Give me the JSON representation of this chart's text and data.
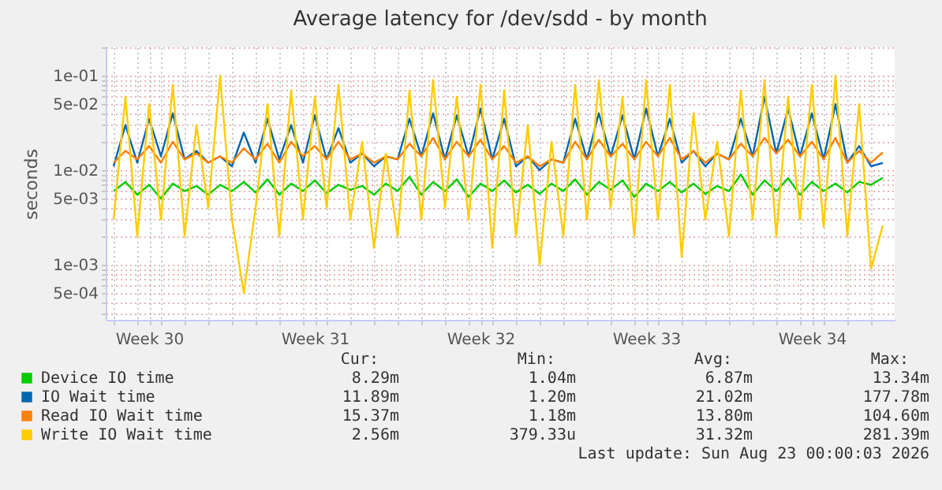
{
  "chart_data": {
    "type": "line",
    "title": "Average latency for /dev/sdd - by month",
    "ylabel": "seconds",
    "log": true,
    "grid": true,
    "legend": "bottom",
    "line_style": "solid",
    "xlim": [
      "2026-07-21T16:00",
      "2026-08-24T00:00"
    ],
    "ylim": [
      0.00026,
      0.2
    ],
    "yticks": [
      {
        "value": 0.0005,
        "label": "5e-04"
      },
      {
        "value": 0.001,
        "label": "1e-03"
      },
      {
        "value": 0.005,
        "label": "5e-03"
      },
      {
        "value": 0.01,
        "label": "1e-02"
      },
      {
        "value": 0.05,
        "label": "5e-02"
      },
      {
        "value": 0.1,
        "label": "1e-01"
      },
      {
        "value": 0.0003,
        "label": null
      },
      {
        "value": 0.0004,
        "label": null
      },
      {
        "value": 0.0006,
        "label": null
      },
      {
        "value": 0.0007,
        "label": null
      },
      {
        "value": 0.0008,
        "label": null
      },
      {
        "value": 0.0009,
        "label": null
      },
      {
        "value": 0.002,
        "label": null
      },
      {
        "value": 0.003,
        "label": null
      },
      {
        "value": 0.004,
        "label": null
      },
      {
        "value": 0.006,
        "label": null
      },
      {
        "value": 0.007,
        "label": null
      },
      {
        "value": 0.008,
        "label": null
      },
      {
        "value": 0.009,
        "label": null
      },
      {
        "value": 0.02,
        "label": null
      },
      {
        "value": 0.03,
        "label": null
      },
      {
        "value": 0.04,
        "label": null
      },
      {
        "value": 0.06,
        "label": null
      },
      {
        "value": 0.07,
        "label": null
      },
      {
        "value": 0.08,
        "label": null
      },
      {
        "value": 0.09,
        "label": null
      },
      {
        "value": 0.2,
        "label": null
      }
    ],
    "xticks": [
      {
        "value": "2026-07-23T12:00",
        "label": "Week 30"
      },
      {
        "value": "2026-07-30T12:00",
        "label": "Week 31"
      },
      {
        "value": "2026-08-06T12:00",
        "label": "Week 32"
      },
      {
        "value": "2026-08-13T12:00",
        "label": "Week 33"
      },
      {
        "value": "2026-08-20T12:00",
        "label": "Week 34"
      },
      {
        "value": "2026-07-22",
        "label": null
      },
      {
        "value": "2026-07-23",
        "label": null
      },
      {
        "value": "2026-07-24",
        "label": null
      },
      {
        "value": "2026-07-25",
        "label": null
      },
      {
        "value": "2026-07-26",
        "label": null
      },
      {
        "value": "2026-07-27",
        "label": null
      },
      {
        "value": "2026-07-28",
        "label": null
      },
      {
        "value": "2026-07-29",
        "label": null
      },
      {
        "value": "2026-07-30",
        "label": null
      },
      {
        "value": "2026-07-31",
        "label": null
      },
      {
        "value": "2026-08-01",
        "label": null
      },
      {
        "value": "2026-08-02",
        "label": null
      },
      {
        "value": "2026-08-03",
        "label": null
      },
      {
        "value": "2026-08-04",
        "label": null
      },
      {
        "value": "2026-08-05",
        "label": null
      },
      {
        "value": "2026-08-06",
        "label": null
      },
      {
        "value": "2026-08-07",
        "label": null
      },
      {
        "value": "2026-08-08",
        "label": null
      },
      {
        "value": "2026-08-09",
        "label": null
      },
      {
        "value": "2026-08-10",
        "label": null
      },
      {
        "value": "2026-08-11",
        "label": null
      },
      {
        "value": "2026-08-12",
        "label": null
      },
      {
        "value": "2026-08-13",
        "label": null
      },
      {
        "value": "2026-08-14",
        "label": null
      },
      {
        "value": "2026-08-15",
        "label": null
      },
      {
        "value": "2026-08-16",
        "label": null
      },
      {
        "value": "2026-08-17",
        "label": null
      },
      {
        "value": "2026-08-18",
        "label": null
      },
      {
        "value": "2026-08-19",
        "label": null
      },
      {
        "value": "2026-08-20",
        "label": null
      },
      {
        "value": "2026-08-21",
        "label": null
      },
      {
        "value": "2026-08-22",
        "label": null
      },
      {
        "value": "2026-08-23",
        "label": null
      }
    ],
    "x": [
      "2026-07-22T00:00",
      "2026-07-22T12:00",
      "2026-07-23T00:00",
      "2026-07-23T12:00",
      "2026-07-24T00:00",
      "2026-07-24T12:00",
      "2026-07-25T00:00",
      "2026-07-25T12:00",
      "2026-07-26T00:00",
      "2026-07-26T12:00",
      "2026-07-27T00:00",
      "2026-07-27T12:00",
      "2026-07-28T00:00",
      "2026-07-28T12:00",
      "2026-07-29T00:00",
      "2026-07-29T12:00",
      "2026-07-30T00:00",
      "2026-07-30T12:00",
      "2026-07-31T00:00",
      "2026-07-31T12:00",
      "2026-08-01T00:00",
      "2026-08-01T12:00",
      "2026-08-02T00:00",
      "2026-08-02T12:00",
      "2026-08-03T00:00",
      "2026-08-03T12:00",
      "2026-08-04T00:00",
      "2026-08-04T12:00",
      "2026-08-05T00:00",
      "2026-08-05T12:00",
      "2026-08-06T00:00",
      "2026-08-06T12:00",
      "2026-08-07T00:00",
      "2026-08-07T12:00",
      "2026-08-08T00:00",
      "2026-08-08T12:00",
      "2026-08-09T00:00",
      "2026-08-09T12:00",
      "2026-08-10T00:00",
      "2026-08-10T12:00",
      "2026-08-11T00:00",
      "2026-08-11T12:00",
      "2026-08-12T00:00",
      "2026-08-12T12:00",
      "2026-08-13T00:00",
      "2026-08-13T12:00",
      "2026-08-14T00:00",
      "2026-08-14T12:00",
      "2026-08-15T00:00",
      "2026-08-15T12:00",
      "2026-08-16T00:00",
      "2026-08-16T12:00",
      "2026-08-17T00:00",
      "2026-08-17T12:00",
      "2026-08-18T00:00",
      "2026-08-18T12:00",
      "2026-08-19T00:00",
      "2026-08-19T12:00",
      "2026-08-20T00:00",
      "2026-08-20T12:00",
      "2026-08-21T00:00",
      "2026-08-21T12:00",
      "2026-08-22T00:00",
      "2026-08-22T12:00",
      "2026-08-23T00:00",
      "2026-08-23T12:00"
    ],
    "series": [
      {
        "name": "Device IO time",
        "color": "#00cc00",
        "values": [
          0.006,
          0.0075,
          0.0055,
          0.007,
          0.005,
          0.0072,
          0.006,
          0.0068,
          0.0055,
          0.007,
          0.006,
          0.0075,
          0.0058,
          0.008,
          0.0055,
          0.0072,
          0.006,
          0.0078,
          0.0057,
          0.007,
          0.0062,
          0.0068,
          0.0055,
          0.0072,
          0.006,
          0.0085,
          0.0055,
          0.0075,
          0.006,
          0.008,
          0.0052,
          0.0072,
          0.006,
          0.0078,
          0.0058,
          0.007,
          0.0056,
          0.0072,
          0.006,
          0.008,
          0.0055,
          0.0075,
          0.0062,
          0.0078,
          0.0052,
          0.0072,
          0.006,
          0.0075,
          0.0058,
          0.0072,
          0.0056,
          0.0068,
          0.006,
          0.009,
          0.0055,
          0.0078,
          0.006,
          0.0082,
          0.0055,
          0.0075,
          0.006,
          0.0072,
          0.0058,
          0.0075,
          0.007,
          0.0083
        ]
      },
      {
        "name": "IO Wait time",
        "color": "#0066b3",
        "values": [
          0.011,
          0.03,
          0.012,
          0.035,
          0.014,
          0.04,
          0.013,
          0.016,
          0.012,
          0.014,
          0.011,
          0.025,
          0.012,
          0.035,
          0.013,
          0.03,
          0.012,
          0.038,
          0.013,
          0.028,
          0.012,
          0.015,
          0.011,
          0.014,
          0.013,
          0.035,
          0.014,
          0.04,
          0.013,
          0.038,
          0.014,
          0.045,
          0.013,
          0.035,
          0.011,
          0.014,
          0.01,
          0.013,
          0.012,
          0.035,
          0.013,
          0.04,
          0.014,
          0.038,
          0.013,
          0.045,
          0.014,
          0.035,
          0.012,
          0.016,
          0.011,
          0.015,
          0.013,
          0.035,
          0.014,
          0.06,
          0.015,
          0.045,
          0.014,
          0.04,
          0.013,
          0.05,
          0.012,
          0.018,
          0.011,
          0.0119
        ]
      },
      {
        "name": "Read IO Wait time",
        "color": "#ff8000",
        "values": [
          0.012,
          0.016,
          0.013,
          0.018,
          0.012,
          0.02,
          0.013,
          0.015,
          0.012,
          0.014,
          0.012,
          0.017,
          0.013,
          0.019,
          0.012,
          0.02,
          0.014,
          0.018,
          0.013,
          0.02,
          0.013,
          0.015,
          0.012,
          0.014,
          0.013,
          0.019,
          0.014,
          0.022,
          0.013,
          0.02,
          0.014,
          0.021,
          0.013,
          0.018,
          0.012,
          0.014,
          0.011,
          0.013,
          0.012,
          0.02,
          0.013,
          0.021,
          0.014,
          0.019,
          0.013,
          0.02,
          0.014,
          0.022,
          0.013,
          0.016,
          0.012,
          0.015,
          0.013,
          0.019,
          0.014,
          0.022,
          0.015,
          0.021,
          0.014,
          0.02,
          0.013,
          0.022,
          0.012,
          0.016,
          0.012,
          0.0154
        ]
      },
      {
        "name": "Write IO Wait time",
        "color": "#ffcc00",
        "values": [
          0.003,
          0.06,
          0.002,
          0.05,
          0.003,
          0.08,
          0.002,
          0.03,
          0.004,
          0.1,
          0.003,
          0.0005,
          0.004,
          0.05,
          0.002,
          0.07,
          0.003,
          0.06,
          0.004,
          0.08,
          0.003,
          0.02,
          0.0015,
          0.015,
          0.002,
          0.07,
          0.003,
          0.09,
          0.004,
          0.06,
          0.003,
          0.08,
          0.0015,
          0.07,
          0.002,
          0.03,
          0.001,
          0.02,
          0.002,
          0.08,
          0.003,
          0.09,
          0.004,
          0.06,
          0.002,
          0.09,
          0.003,
          0.08,
          0.0012,
          0.04,
          0.003,
          0.02,
          0.002,
          0.07,
          0.003,
          0.09,
          0.002,
          0.06,
          0.003,
          0.08,
          0.0025,
          0.1,
          0.002,
          0.05,
          0.0009,
          0.0026
        ]
      }
    ],
    "annotations": [
      "Cur:",
      "Min:",
      "Avg:",
      "Max:",
      "8.29m",
      "1.04m",
      "6.87m",
      "13.34m",
      "11.89m",
      "1.20m",
      "21.02m",
      "177.78m",
      "15.37m",
      "1.18m",
      "13.80m",
      "104.60m",
      "2.56m",
      "379.33u",
      "31.32m",
      "281.39m",
      "Last update: Sun Aug 23 00:00:03 2026"
    ]
  }
}
